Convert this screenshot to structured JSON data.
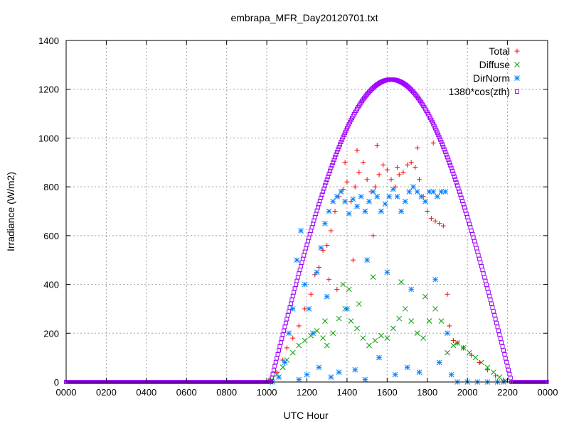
{
  "chart_data": {
    "type": "scatter",
    "title": "embrapa_MFR_Day20120701.txt",
    "xlabel": "UTC Hour",
    "ylabel": "Irradiance (W/m2)",
    "xlim": [
      0,
      24
    ],
    "ylim": [
      0,
      1400
    ],
    "x_ticks": [
      0,
      2,
      4,
      6,
      8,
      10,
      12,
      14,
      16,
      18,
      20,
      22,
      24
    ],
    "x_tick_labels": [
      "0000",
      "0200",
      "0400",
      "0600",
      "0800",
      "1000",
      "1200",
      "1400",
      "1600",
      "1800",
      "2000",
      "2200",
      "0000"
    ],
    "y_ticks": [
      0,
      200,
      400,
      600,
      800,
      1000,
      1200,
      1400
    ],
    "y_tick_labels": [
      "0",
      "200",
      "400",
      "600",
      "800",
      "1000",
      "1200",
      "1400"
    ],
    "grid": true,
    "legend_position": "top-right",
    "series": [
      {
        "name": "Total",
        "marker": "plus",
        "color": "#ff0000",
        "points": [
          [
            10.2,
            10
          ],
          [
            10.5,
            40
          ],
          [
            10.8,
            90
          ],
          [
            11.0,
            140
          ],
          [
            11.3,
            180
          ],
          [
            11.6,
            230
          ],
          [
            11.9,
            300
          ],
          [
            12.2,
            360
          ],
          [
            12.4,
            440
          ],
          [
            12.6,
            470
          ],
          [
            12.8,
            540
          ],
          [
            13.0,
            560
          ],
          [
            13.2,
            620
          ],
          [
            13.4,
            700
          ],
          [
            13.6,
            760
          ],
          [
            13.8,
            790
          ],
          [
            14.0,
            820
          ],
          [
            14.2,
            740
          ],
          [
            14.4,
            800
          ],
          [
            14.6,
            860
          ],
          [
            14.8,
            900
          ],
          [
            15.0,
            830
          ],
          [
            15.2,
            780
          ],
          [
            15.4,
            800
          ],
          [
            15.6,
            850
          ],
          [
            15.8,
            890
          ],
          [
            16.0,
            870
          ],
          [
            16.2,
            830
          ],
          [
            16.4,
            800
          ],
          [
            16.6,
            850
          ],
          [
            16.8,
            860
          ],
          [
            17.0,
            890
          ],
          [
            17.2,
            900
          ],
          [
            17.4,
            880
          ],
          [
            17.6,
            830
          ],
          [
            17.8,
            760
          ],
          [
            18.0,
            700
          ],
          [
            18.2,
            670
          ],
          [
            18.4,
            660
          ],
          [
            18.6,
            650
          ],
          [
            18.8,
            640
          ],
          [
            19.0,
            360
          ],
          [
            19.1,
            230
          ],
          [
            19.3,
            170
          ],
          [
            19.5,
            160
          ],
          [
            19.8,
            140
          ],
          [
            20.2,
            110
          ],
          [
            20.6,
            80
          ],
          [
            21.0,
            50
          ],
          [
            21.4,
            25
          ],
          [
            21.8,
            8
          ],
          [
            13.5,
            380
          ],
          [
            13.9,
            900
          ],
          [
            14.5,
            950
          ],
          [
            15.5,
            970
          ],
          [
            16.5,
            880
          ],
          [
            17.5,
            960
          ],
          [
            18.3,
            980
          ],
          [
            13.1,
            420
          ],
          [
            14.3,
            500
          ],
          [
            15.3,
            600
          ]
        ]
      },
      {
        "name": "Diffuse",
        "marker": "x",
        "color": "#00a000",
        "points": [
          [
            10.2,
            5
          ],
          [
            10.5,
            30
          ],
          [
            10.8,
            60
          ],
          [
            11.0,
            90
          ],
          [
            11.3,
            120
          ],
          [
            11.6,
            150
          ],
          [
            11.9,
            170
          ],
          [
            12.2,
            190
          ],
          [
            12.5,
            210
          ],
          [
            12.8,
            180
          ],
          [
            13.0,
            150
          ],
          [
            13.3,
            200
          ],
          [
            13.6,
            260
          ],
          [
            13.9,
            300
          ],
          [
            14.2,
            250
          ],
          [
            14.5,
            220
          ],
          [
            14.8,
            180
          ],
          [
            15.1,
            150
          ],
          [
            15.4,
            170
          ],
          [
            15.7,
            190
          ],
          [
            16.0,
            180
          ],
          [
            16.3,
            220
          ],
          [
            16.6,
            260
          ],
          [
            16.9,
            300
          ],
          [
            17.2,
            250
          ],
          [
            17.5,
            200
          ],
          [
            17.8,
            180
          ],
          [
            18.1,
            250
          ],
          [
            18.4,
            300
          ],
          [
            18.7,
            250
          ],
          [
            19.0,
            120
          ],
          [
            19.3,
            150
          ],
          [
            19.5,
            160
          ],
          [
            19.8,
            140
          ],
          [
            20.1,
            120
          ],
          [
            20.4,
            100
          ],
          [
            20.7,
            80
          ],
          [
            21.0,
            60
          ],
          [
            21.3,
            40
          ],
          [
            21.6,
            20
          ],
          [
            21.9,
            5
          ],
          [
            13.8,
            400
          ],
          [
            14.1,
            380
          ],
          [
            15.3,
            430
          ],
          [
            16.7,
            410
          ],
          [
            17.9,
            350
          ],
          [
            12.9,
            250
          ],
          [
            14.6,
            320
          ]
        ]
      },
      {
        "name": "DirNorm",
        "marker": "star",
        "color": "#0080ff",
        "points": [
          [
            10.3,
            0
          ],
          [
            10.6,
            20
          ],
          [
            10.9,
            80
          ],
          [
            11.1,
            200
          ],
          [
            11.3,
            300
          ],
          [
            11.5,
            500
          ],
          [
            11.7,
            620
          ],
          [
            11.9,
            400
          ],
          [
            12.1,
            300
          ],
          [
            12.3,
            200
          ],
          [
            12.5,
            450
          ],
          [
            12.7,
            550
          ],
          [
            12.9,
            650
          ],
          [
            13.1,
            700
          ],
          [
            13.3,
            740
          ],
          [
            13.5,
            760
          ],
          [
            13.7,
            780
          ],
          [
            13.9,
            740
          ],
          [
            14.1,
            690
          ],
          [
            14.3,
            750
          ],
          [
            14.5,
            720
          ],
          [
            14.7,
            760
          ],
          [
            14.9,
            700
          ],
          [
            15.1,
            740
          ],
          [
            15.3,
            780
          ],
          [
            15.5,
            760
          ],
          [
            15.7,
            700
          ],
          [
            15.9,
            730
          ],
          [
            16.1,
            760
          ],
          [
            16.3,
            790
          ],
          [
            16.5,
            760
          ],
          [
            16.7,
            700
          ],
          [
            16.9,
            740
          ],
          [
            17.1,
            780
          ],
          [
            17.3,
            800
          ],
          [
            17.5,
            780
          ],
          [
            17.7,
            760
          ],
          [
            17.9,
            740
          ],
          [
            18.1,
            780
          ],
          [
            18.3,
            780
          ],
          [
            18.5,
            760
          ],
          [
            18.7,
            780
          ],
          [
            18.9,
            780
          ],
          [
            19.0,
            200
          ],
          [
            19.2,
            30
          ],
          [
            19.5,
            0
          ],
          [
            20.0,
            0
          ],
          [
            20.5,
            0
          ],
          [
            21.0,
            0
          ],
          [
            21.5,
            0
          ],
          [
            21.8,
            0
          ],
          [
            11.6,
            10
          ],
          [
            12.0,
            30
          ],
          [
            12.6,
            60
          ],
          [
            13.2,
            20
          ],
          [
            13.6,
            40
          ],
          [
            14.4,
            50
          ],
          [
            14.9,
            10
          ],
          [
            15.6,
            100
          ],
          [
            16.4,
            30
          ],
          [
            17.0,
            60
          ],
          [
            17.6,
            40
          ],
          [
            18.6,
            80
          ],
          [
            13.0,
            350
          ],
          [
            14.0,
            300
          ],
          [
            15.0,
            500
          ],
          [
            16.0,
            450
          ],
          [
            17.2,
            380
          ],
          [
            18.4,
            420
          ]
        ]
      },
      {
        "name": "1380*cos(zth)",
        "marker": "square",
        "color": "#a000ff",
        "curve": {
          "peak_x": 16.2,
          "peak_y": 1240,
          "x_start": 10.2,
          "x_end": 22.2
        }
      }
    ]
  }
}
